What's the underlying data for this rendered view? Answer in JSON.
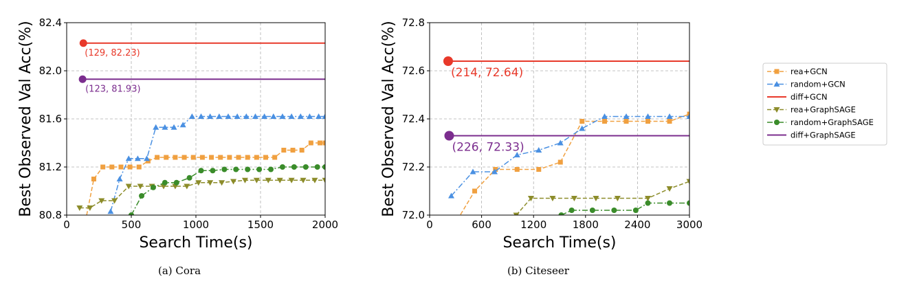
{
  "legend": {
    "placement": "right",
    "entries": [
      {
        "name": "rea+GCN",
        "color": "#F0A040",
        "marker": "square",
        "dash": "dashed"
      },
      {
        "name": "random+GCN",
        "color": "#4A90E2",
        "marker": "triangle-up",
        "dash": "dashdot"
      },
      {
        "name": "diff+GCN",
        "color": "#E8392A",
        "marker": "none",
        "dash": "solid"
      },
      {
        "name": "rea+GraphSAGE",
        "color": "#8C8C2A",
        "marker": "triangle-down",
        "dash": "dashed"
      },
      {
        "name": "random+GraphSAGE",
        "color": "#3A8C2A",
        "marker": "circle",
        "dash": "dashdot"
      },
      {
        "name": "diff+GraphSAGE",
        "color": "#7B2D8E",
        "marker": "none",
        "dash": "solid"
      }
    ]
  },
  "chart_data": [
    {
      "type": "line",
      "caption": "(a)  Cora",
      "xlabel": "Search Time(s)",
      "ylabel": "Best Observed Val Acc(%)",
      "xlim": [
        0,
        2000
      ],
      "ylim": [
        80.8,
        82.4
      ],
      "xticks": [
        0,
        500,
        1000,
        1500,
        2000
      ],
      "yticks": [
        80.8,
        81.2,
        81.6,
        82.0,
        82.4
      ],
      "ytick_labels": [
        "80.8",
        "81.2",
        "81.6",
        "82.0",
        "82.4"
      ],
      "grid": true,
      "series": [
        {
          "name": "rea+GCN",
          "x": [
            70,
            140,
            210,
            280,
            350,
            420,
            490,
            560,
            630,
            700,
            770,
            840,
            910,
            980,
            1050,
            1120,
            1190,
            1260,
            1330,
            1400,
            1470,
            1540,
            1610,
            1680,
            1750,
            1820,
            1890,
            1960,
            2000
          ],
          "y": [
            80.62,
            80.72,
            81.1,
            81.2,
            81.2,
            81.2,
            81.2,
            81.2,
            81.25,
            81.28,
            81.28,
            81.28,
            81.28,
            81.28,
            81.28,
            81.28,
            81.28,
            81.28,
            81.28,
            81.28,
            81.28,
            81.28,
            81.28,
            81.34,
            81.34,
            81.34,
            81.4,
            81.4,
            81.4
          ]
        },
        {
          "name": "random+GCN",
          "x": [
            340,
            410,
            480,
            550,
            620,
            690,
            760,
            830,
            900,
            970,
            1040,
            1110,
            1180,
            1250,
            1320,
            1390,
            1460,
            1530,
            1600,
            1670,
            1740,
            1810,
            1880,
            1950,
            2000
          ],
          "y": [
            80.83,
            81.1,
            81.27,
            81.27,
            81.27,
            81.53,
            81.53,
            81.53,
            81.55,
            81.62,
            81.62,
            81.62,
            81.62,
            81.62,
            81.62,
            81.62,
            81.62,
            81.62,
            81.62,
            81.62,
            81.62,
            81.62,
            81.62,
            81.62,
            81.62
          ]
        },
        {
          "name": "rea+GraphSAGE",
          "x": [
            100,
            180,
            270,
            370,
            480,
            570,
            660,
            750,
            840,
            930,
            1020,
            1110,
            1200,
            1290,
            1380,
            1470,
            1560,
            1650,
            1740,
            1830,
            1920,
            2000
          ],
          "y": [
            80.86,
            80.86,
            80.92,
            80.92,
            81.04,
            81.04,
            81.04,
            81.04,
            81.04,
            81.04,
            81.07,
            81.07,
            81.07,
            81.08,
            81.09,
            81.09,
            81.09,
            81.09,
            81.09,
            81.09,
            81.09,
            81.09
          ]
        },
        {
          "name": "random+GraphSAGE",
          "x": [
            500,
            580,
            670,
            760,
            850,
            950,
            1040,
            1130,
            1220,
            1310,
            1400,
            1490,
            1580,
            1670,
            1760,
            1850,
            1940,
            2000
          ],
          "y": [
            80.8,
            80.96,
            81.03,
            81.07,
            81.07,
            81.11,
            81.17,
            81.17,
            81.18,
            81.18,
            81.18,
            81.18,
            81.18,
            81.2,
            81.2,
            81.2,
            81.2,
            81.2
          ]
        },
        {
          "name": "diff+GCN",
          "x": [
            129,
            2000
          ],
          "y": [
            82.23,
            82.23
          ],
          "point": [
            129,
            82.23
          ],
          "annotation": "(129, 82.23)"
        },
        {
          "name": "diff+GraphSAGE",
          "x": [
            123,
            2000
          ],
          "y": [
            81.93,
            81.93
          ],
          "point": [
            123,
            81.93
          ],
          "annotation": "(123, 81.93)"
        }
      ]
    },
    {
      "type": "line",
      "caption": "(b)  Citeseer",
      "xlabel": "Search Time(s)",
      "ylabel": "Best Observed Val Acc(%)",
      "xlim": [
        0,
        3000
      ],
      "ylim": [
        72.0,
        72.8
      ],
      "xticks": [
        0,
        600,
        1200,
        1800,
        2400,
        3000
      ],
      "yticks": [
        72.0,
        72.2,
        72.4,
        72.6,
        72.8
      ],
      "ytick_labels": [
        "72.0",
        "72.2",
        "72.4",
        "72.6",
        "72.8"
      ],
      "grid": true,
      "series": [
        {
          "name": "rea+GCN",
          "x": [
            320,
            520,
            760,
            1010,
            1260,
            1510,
            1760,
            2020,
            2270,
            2520,
            2770,
            3000
          ],
          "y": [
            71.98,
            72.1,
            72.19,
            72.19,
            72.19,
            72.22,
            72.39,
            72.39,
            72.39,
            72.39,
            72.39,
            72.42
          ]
        },
        {
          "name": "random+GCN",
          "x": [
            250,
            500,
            750,
            1010,
            1260,
            1510,
            1760,
            2020,
            2270,
            2520,
            2770,
            3000
          ],
          "y": [
            72.08,
            72.18,
            72.18,
            72.25,
            72.27,
            72.3,
            72.36,
            72.41,
            72.41,
            72.41,
            72.41,
            72.41
          ]
        },
        {
          "name": "rea+GraphSAGE",
          "x": [
            1000,
            1170,
            1420,
            1670,
            1920,
            2170,
            2520,
            2770,
            3000
          ],
          "y": [
            72.0,
            72.07,
            72.07,
            72.07,
            72.07,
            72.07,
            72.07,
            72.11,
            72.14
          ]
        },
        {
          "name": "random+GraphSAGE",
          "x": [
            1520,
            1640,
            1880,
            2130,
            2380,
            2520,
            2770,
            3000
          ],
          "y": [
            72.0,
            72.02,
            72.02,
            72.02,
            72.02,
            72.05,
            72.05,
            72.05
          ]
        },
        {
          "name": "diff+GCN",
          "x": [
            214,
            3000
          ],
          "y": [
            72.64,
            72.64
          ],
          "point": [
            214,
            72.64
          ],
          "annotation": "(214, 72.64)"
        },
        {
          "name": "diff+GraphSAGE",
          "x": [
            226,
            3000
          ],
          "y": [
            72.33,
            72.33
          ],
          "point": [
            226,
            72.33
          ],
          "annotation": "(226, 72.33)"
        }
      ]
    }
  ]
}
